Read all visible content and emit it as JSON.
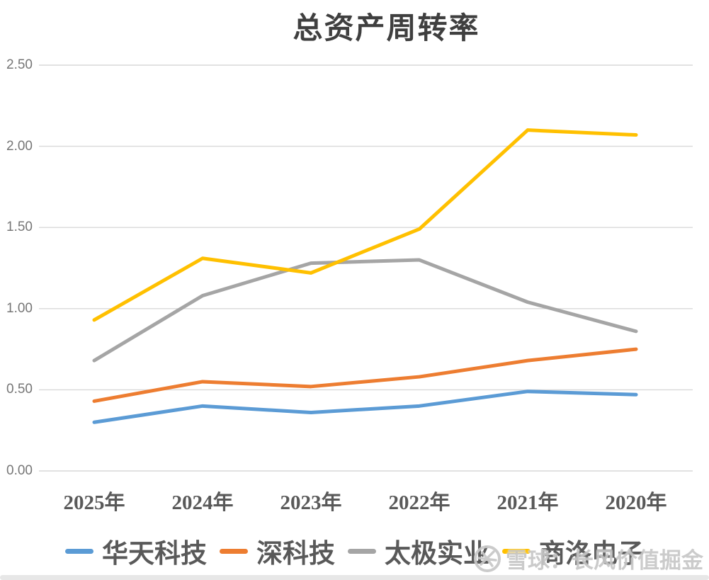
{
  "chart_data": {
    "type": "line",
    "title": "总资产周转率",
    "categories": [
      "2025年",
      "2024年",
      "2023年",
      "2022年",
      "2021年",
      "2020年"
    ],
    "series": [
      {
        "name": "华天科技",
        "color": "#5B9BD5",
        "values": [
          0.3,
          0.4,
          0.36,
          0.4,
          0.49,
          0.47
        ]
      },
      {
        "name": "深科技",
        "color": "#ED7D31",
        "values": [
          0.43,
          0.55,
          0.52,
          0.58,
          0.68,
          0.75
        ]
      },
      {
        "name": "太极实业",
        "color": "#A5A5A5",
        "values": [
          0.68,
          1.08,
          1.28,
          1.3,
          1.04,
          0.86
        ]
      },
      {
        "name": "商洛电子",
        "color": "#FFC000",
        "values": [
          0.93,
          1.31,
          1.22,
          1.49,
          2.1,
          2.07
        ]
      }
    ],
    "ylim": [
      0.0,
      2.5
    ],
    "yticks": [
      0.0,
      0.5,
      1.0,
      1.5,
      2.0,
      2.5
    ],
    "ytick_labels": [
      "0.00",
      "0.50",
      "1.00",
      "1.50",
      "2.00",
      "2.50"
    ],
    "xlabel": "",
    "ylabel": "",
    "grid": true,
    "legend_position": "bottom"
  },
  "watermark": {
    "text": "雪球：长风价值掘金",
    "logo": "xueqiu-snowball-logo"
  },
  "colors": {
    "gridline": "#d9d9d9",
    "ytick_text": "#767676",
    "xtick_text": "#595959",
    "title_text": "#3f3f3f",
    "legend_text": "#595959",
    "watermark": "#c7c7c7"
  }
}
